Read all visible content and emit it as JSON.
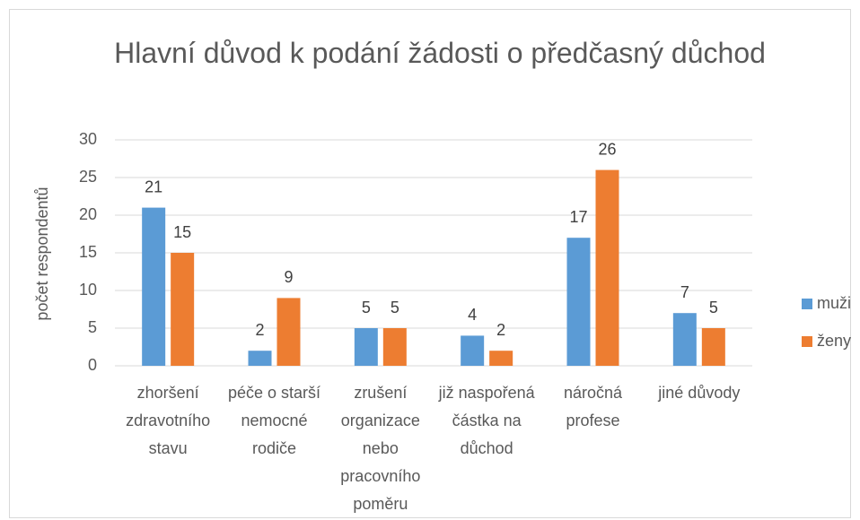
{
  "chart_data": {
    "type": "bar",
    "title": "Hlavní důvod k podání žádosti o předčasný důchod",
    "y_label": "počet respondentů",
    "categories": [
      "zhoršení zdravotního stavu",
      "péče o starší nemocné rodiče",
      "zrušení organizace nebo pracovního poměru",
      "již naspořená částka na důchod",
      "náročná profese",
      "jiné důvody"
    ],
    "series": [
      {
        "name": "muži",
        "color": "#5b9bd5",
        "values": [
          21,
          2,
          5,
          4,
          17,
          7
        ]
      },
      {
        "name": "ženy",
        "color": "#ed7d31",
        "values": [
          15,
          9,
          5,
          2,
          26,
          5
        ]
      }
    ],
    "ylim": [
      0,
      30
    ],
    "yticks": [
      0,
      5,
      10,
      15,
      20,
      25,
      30
    ],
    "grid": true,
    "legend": "right"
  }
}
